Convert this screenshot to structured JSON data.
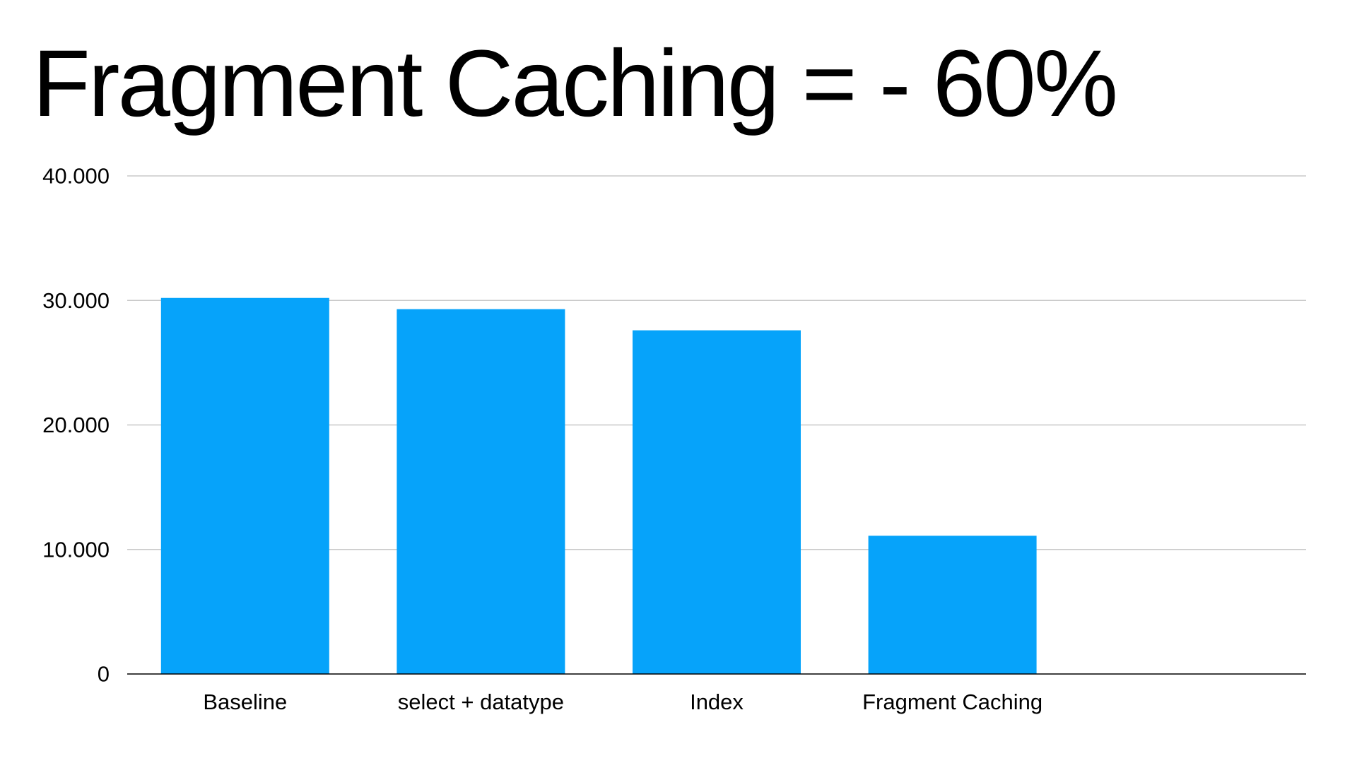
{
  "chart_data": {
    "type": "bar",
    "title": "Fragment Caching = - 60%",
    "xlabel": "",
    "ylabel": "",
    "categories": [
      "Baseline",
      "select + datatype",
      "Index",
      "Fragment Caching",
      ""
    ],
    "values": [
      30200,
      29300,
      27600,
      11100,
      null
    ],
    "ylim": [
      0,
      40000
    ],
    "yticks": [
      0,
      10000,
      20000,
      30000,
      40000
    ],
    "ytick_labels": [
      "0",
      "10.000",
      "20.000",
      "30.000",
      "40.000"
    ],
    "grid": true,
    "legend": "none",
    "bar_color": "#06A3FA",
    "grid_color": "#c8c8c8",
    "axis_color": "#000000"
  }
}
